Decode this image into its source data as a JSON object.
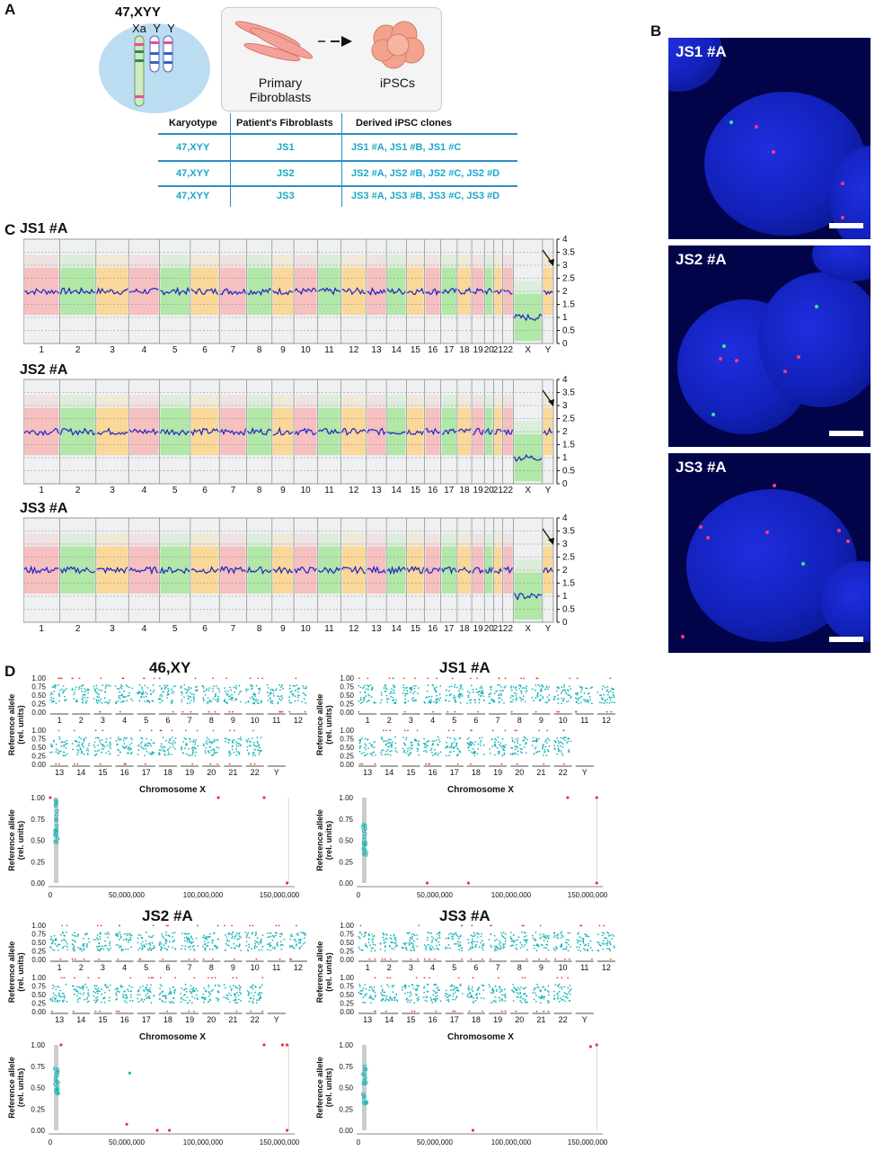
{
  "panels": {
    "A": "A",
    "B": "B",
    "C": "C",
    "D": "D"
  },
  "panelA": {
    "karyotype_title": "47,XYY",
    "chrom_labels": "Xa Y Y",
    "fibroblast_label": "Primary Fibroblasts",
    "ipsc_label": "iPSCs",
    "table": {
      "headers": [
        "Karyotype",
        "Patient's Fibroblasts",
        "Derived iPSC clones"
      ],
      "rows": [
        [
          "47,XYY",
          "JS1",
          "JS1 #A, JS1 #B, JS1 #C"
        ],
        [
          "47,XYY",
          "JS2",
          "JS2 #A, JS2 #B, JS2 #C, JS2 #D"
        ],
        [
          "47,XYY",
          "JS3",
          "JS3 #A, JS3 #B, JS3 #C, JS3 #D"
        ]
      ]
    }
  },
  "panelB": {
    "images": [
      "JS1 #A",
      "JS2 #A",
      "JS3 #A"
    ]
  },
  "panelC": {
    "plots": [
      "JS1 #A",
      "JS2 #A",
      "JS3 #A"
    ],
    "chromosomes": [
      "1",
      "2",
      "3",
      "4",
      "5",
      "6",
      "7",
      "8",
      "9",
      "10",
      "11",
      "12",
      "13",
      "14",
      "15",
      "16",
      "17",
      "18",
      "19",
      "20",
      "21",
      "22",
      "X",
      "Y"
    ],
    "yticks": [
      "4",
      "3.5",
      "3",
      "2.5",
      "2",
      "1.5",
      "1",
      "0.5",
      "0"
    ]
  },
  "panelD": {
    "groups": [
      {
        "title": "46,XY",
        "chrx_title": "Chromosome X"
      },
      {
        "title": "JS1 #A",
        "chrx_title": "Chromosome X"
      },
      {
        "title": "JS2 #A",
        "chrx_title": "Chromosome X"
      },
      {
        "title": "JS3 #A",
        "chrx_title": "Chromosome X"
      }
    ],
    "ylabel1": "Reference allele",
    "ylabel2": "(rel. units)",
    "row1_chroms": [
      "1",
      "2",
      "3",
      "4",
      "5",
      "6",
      "7",
      "8",
      "9",
      "10",
      "11",
      "12"
    ],
    "row2_chroms": [
      "13",
      "14",
      "15",
      "16",
      "17",
      "18",
      "19",
      "20",
      "21",
      "22",
      "Y"
    ],
    "small_yticks": [
      "1.00",
      "0.75",
      "0.50",
      "0.25",
      "0.00"
    ],
    "x_ticks": [
      "0",
      "50,000,000",
      "100,000,000",
      "150,000,000"
    ]
  },
  "colors": {
    "cyan": "#1fb5b8",
    "red": "#e33b3b",
    "blue": "#1e1ec8",
    "pink": "#f7b7b7",
    "green": "#a6e69a",
    "orange": "#fbd48a",
    "teal_text": "#1aa7c9"
  }
}
